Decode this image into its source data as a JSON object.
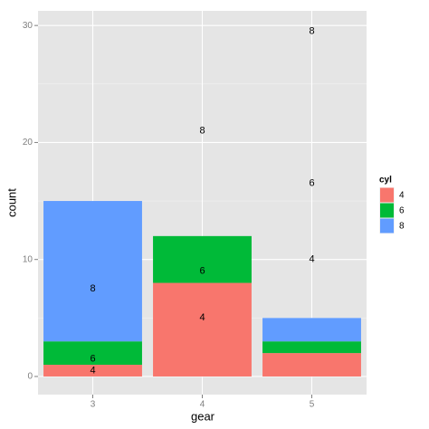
{
  "chart_data": {
    "type": "stacked-bar",
    "x_label": "gear",
    "y_label": "count",
    "categories": [
      "3",
      "4",
      "5"
    ],
    "legend_title": "cyl",
    "series": [
      {
        "name": "4",
        "color": "#F8766D",
        "values": [
          1,
          8,
          2
        ]
      },
      {
        "name": "6",
        "color": "#00BA38",
        "values": [
          2,
          4,
          1
        ]
      },
      {
        "name": "8",
        "color": "#619CFF",
        "values": [
          12,
          0,
          2
        ]
      }
    ],
    "text_labels": [
      {
        "text": "4",
        "category": 0,
        "y": 0.5
      },
      {
        "text": "6",
        "category": 0,
        "y": 1.5
      },
      {
        "text": "8",
        "category": 0,
        "y": 7.5
      },
      {
        "text": "4",
        "category": 1,
        "y": 5
      },
      {
        "text": "6",
        "category": 1,
        "y": 9
      },
      {
        "text": "8",
        "category": 1,
        "y": 21
      },
      {
        "text": "4",
        "category": 2,
        "y": 10
      },
      {
        "text": "6",
        "category": 2,
        "y": 16.5
      },
      {
        "text": "8",
        "category": 2,
        "y": 29.5
      }
    ],
    "ylim": [
      -1.55,
      31.25
    ],
    "yticks": [
      0,
      10,
      20,
      30
    ],
    "yminor": [
      5,
      15,
      25
    ],
    "grid": true,
    "legend": "right"
  }
}
